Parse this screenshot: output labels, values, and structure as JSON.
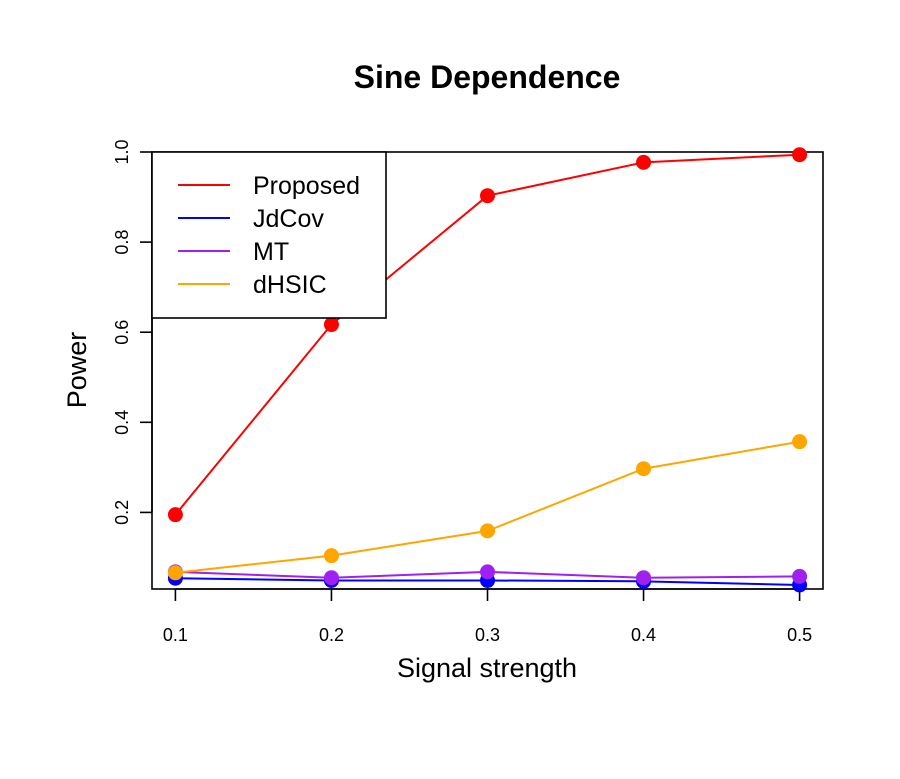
{
  "chart_data": {
    "type": "line",
    "title": "Sine Dependence",
    "xlabel": "Signal strength",
    "ylabel": "Power",
    "x": [
      0.1,
      0.2,
      0.3,
      0.4,
      0.5
    ],
    "x_ticks": [
      "0.1",
      "0.2",
      "0.3",
      "0.4",
      "0.5"
    ],
    "y_ticks": [
      "0.2",
      "0.4",
      "0.6",
      "0.8",
      "1.0"
    ],
    "xlim": [
      0.085,
      0.515
    ],
    "ylim": [
      0.03,
      1.0
    ],
    "grid": false,
    "legend_position": "top-left",
    "series": [
      {
        "name": "Proposed",
        "color": "#ff0000",
        "values": [
          0.195,
          0.617,
          0.903,
          0.977,
          0.994
        ]
      },
      {
        "name": "JdCov",
        "color": "#0000ff",
        "values": [
          0.054,
          0.049,
          0.049,
          0.047,
          0.039
        ]
      },
      {
        "name": "MT",
        "color": "#a020f0",
        "values": [
          0.068,
          0.055,
          0.068,
          0.055,
          0.058
        ]
      },
      {
        "name": "dHSIC",
        "color": "#ffa500",
        "values": [
          0.066,
          0.104,
          0.159,
          0.297,
          0.357
        ]
      }
    ]
  }
}
